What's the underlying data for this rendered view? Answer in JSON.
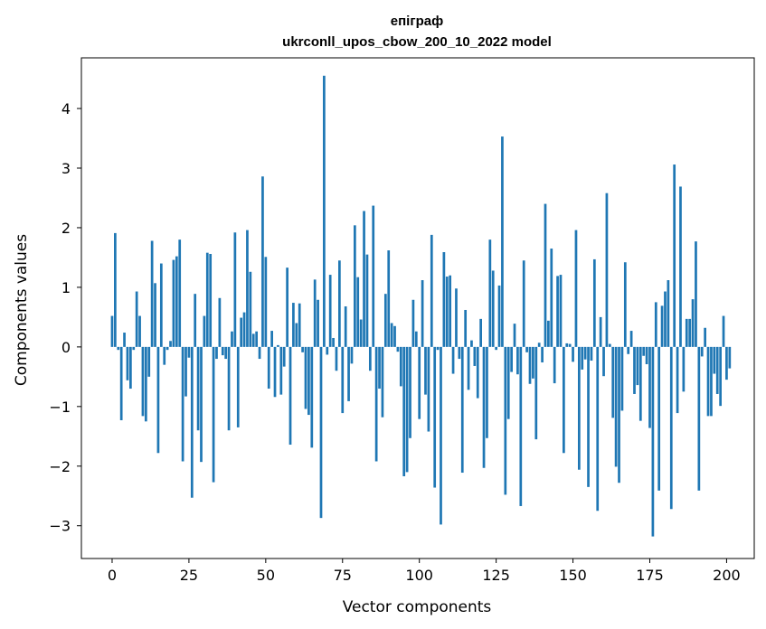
{
  "chart_data": {
    "type": "bar",
    "title": [
      "епіграф",
      "ukrconll_upos_cbow_200_10_2022 model"
    ],
    "xlabel": "Vector components",
    "ylabel": "Components values",
    "xlim": [
      -10,
      209
    ],
    "ylim": [
      -3.55,
      4.85
    ],
    "xticks": [
      0,
      25,
      50,
      75,
      100,
      125,
      150,
      175,
      200
    ],
    "xtick_labels": [
      "0",
      "25",
      "50",
      "75",
      "100",
      "125",
      "150",
      "175",
      "200"
    ],
    "yticks": [
      -3,
      -2,
      -1,
      0,
      1,
      2,
      3,
      4
    ],
    "ytick_labels": [
      "−3",
      "−2",
      "−1",
      "0",
      "1",
      "2",
      "3",
      "4"
    ],
    "grid": false,
    "bar_color": "#1f77b4",
    "values": [
      0.52,
      1.91,
      -0.05,
      -1.23,
      0.24,
      -0.56,
      -0.7,
      -0.05,
      0.93,
      0.52,
      -1.16,
      -1.25,
      -0.5,
      1.78,
      1.07,
      -1.78,
      1.4,
      -0.3,
      -0.05,
      0.1,
      1.46,
      1.52,
      1.8,
      -1.92,
      -0.83,
      -0.18,
      -2.53,
      0.89,
      -1.4,
      -1.93,
      0.52,
      1.58,
      1.56,
      -2.27,
      -0.2,
      0.82,
      -0.14,
      -0.2,
      -1.4,
      0.26,
      1.92,
      -1.35,
      0.49,
      0.58,
      1.96,
      1.26,
      0.22,
      0.26,
      -0.2,
      2.86,
      1.51,
      -0.7,
      0.27,
      -0.84,
      0.03,
      -0.8,
      -0.33,
      1.33,
      -1.64,
      0.74,
      0.4,
      0.73,
      -0.09,
      -1.04,
      -1.14,
      -1.69,
      1.13,
      0.79,
      -2.87,
      4.55,
      -0.13,
      1.21,
      0.15,
      -0.4,
      1.45,
      -1.11,
      0.68,
      -0.91,
      -0.28,
      2.04,
      1.17,
      0.46,
      2.28,
      1.55,
      -0.4,
      2.37,
      -1.92,
      -0.7,
      -1.18,
      0.89,
      1.62,
      0.4,
      0.35,
      -0.08,
      -0.66,
      -2.17,
      -2.1,
      -1.53,
      0.79,
      0.26,
      -1.21,
      1.12,
      -0.8,
      -1.42,
      1.88,
      -2.36,
      -0.05,
      -2.98,
      1.59,
      1.18,
      1.2,
      -0.45,
      0.98,
      -0.2,
      -2.11,
      0.62,
      -0.72,
      0.11,
      -0.32,
      -0.86,
      0.47,
      -2.03,
      -1.53,
      1.8,
      1.28,
      -0.05,
      1.03,
      3.53,
      -2.48,
      -1.21,
      -0.42,
      0.39,
      -0.46,
      -2.67,
      1.45,
      -0.09,
      -0.62,
      -0.53,
      -1.55,
      0.07,
      -0.26,
      2.4,
      0.44,
      1.65,
      -0.61,
      1.19,
      1.21,
      -1.78,
      0.06,
      0.05,
      -0.25,
      1.96,
      -2.06,
      -0.38,
      -0.21,
      -2.35,
      -0.23,
      1.47,
      -2.75,
      0.5,
      -0.49,
      2.58,
      0.05,
      -1.19,
      -2.01,
      -2.28,
      -1.07,
      1.42,
      -0.12,
      0.27,
      -0.79,
      -0.64,
      -1.24,
      -0.15,
      -0.29,
      -1.36,
      -3.18,
      0.75,
      -2.41,
      0.69,
      0.93,
      1.12,
      -2.72,
      3.06,
      -1.11,
      2.69,
      -0.75,
      0.47,
      0.47,
      0.8,
      1.77,
      -2.41,
      -0.16,
      0.32,
      -1.16,
      -1.16,
      -0.45,
      -0.79,
      -0.99,
      0.52,
      -0.55,
      -0.36
    ]
  }
}
